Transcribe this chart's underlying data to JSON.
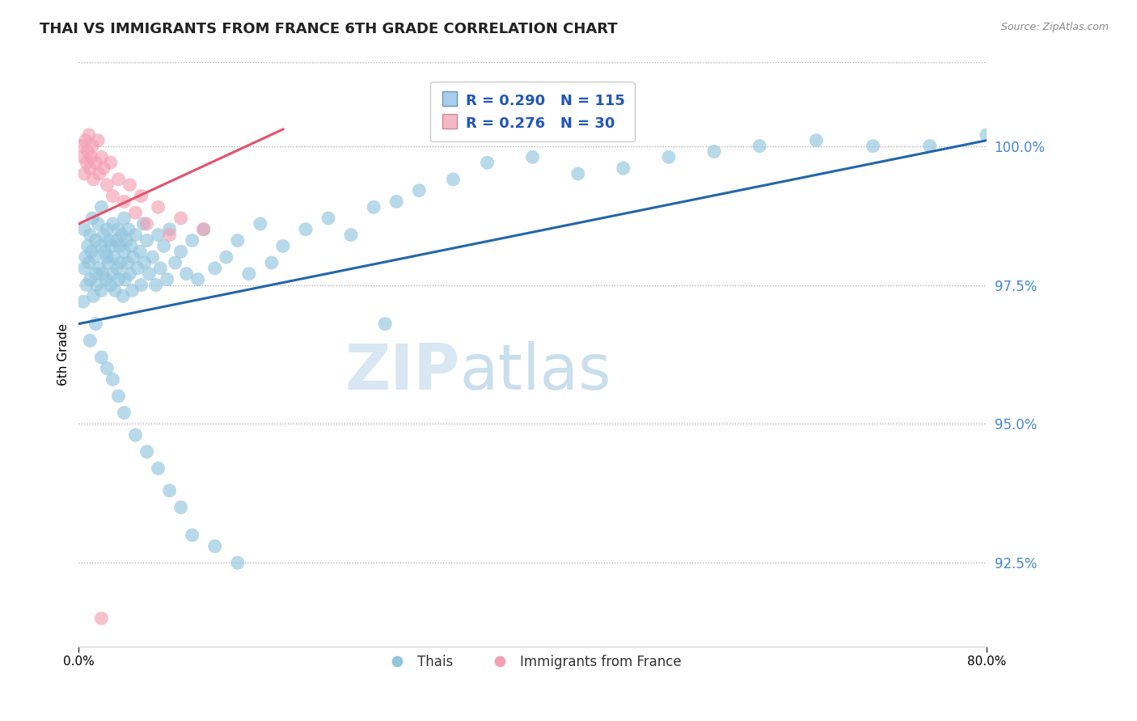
{
  "title": "THAI VS IMMIGRANTS FROM FRANCE 6TH GRADE CORRELATION CHART",
  "source_text": "Source: ZipAtlas.com",
  "xlabel": "",
  "ylabel": "6th Grade",
  "xlim": [
    0.0,
    80.0
  ],
  "ylim": [
    91.0,
    101.5
  ],
  "yticks": [
    92.5,
    95.0,
    97.5,
    100.0
  ],
  "ytick_labels": [
    "92.5%",
    "95.0%",
    "97.5%",
    "100.0%"
  ],
  "xticks": [
    0.0,
    80.0
  ],
  "xtick_labels": [
    "0.0%",
    "80.0%"
  ],
  "legend_r_blue": "R = 0.290",
  "legend_n_blue": "N = 115",
  "legend_r_pink": "R = 0.276",
  "legend_n_pink": "N = 30",
  "legend_label_blue": "Thais",
  "legend_label_pink": "Immigrants from France",
  "blue_color": "#92c5de",
  "pink_color": "#f4a0b5",
  "blue_line_color": "#2166ac",
  "pink_line_color": "#e8506a",
  "watermark_color": "#cce0f0",
  "watermark_text": "ZIPatlas",
  "blue_line_x0": 0.0,
  "blue_line_y0": 96.8,
  "blue_line_x1": 80.0,
  "blue_line_y1": 100.1,
  "pink_line_x0": 0.0,
  "pink_line_y0": 98.6,
  "pink_line_x1": 18.0,
  "pink_line_y1": 100.3,
  "blue_scatter_x": [
    0.4,
    0.5,
    0.5,
    0.6,
    0.7,
    0.8,
    0.9,
    1.0,
    1.0,
    1.1,
    1.2,
    1.3,
    1.4,
    1.5,
    1.5,
    1.6,
    1.7,
    1.8,
    1.9,
    2.0,
    2.0,
    2.1,
    2.2,
    2.3,
    2.4,
    2.5,
    2.5,
    2.6,
    2.7,
    2.8,
    2.9,
    3.0,
    3.0,
    3.1,
    3.2,
    3.3,
    3.4,
    3.5,
    3.5,
    3.6,
    3.7,
    3.8,
    3.9,
    4.0,
    4.0,
    4.1,
    4.2,
    4.3,
    4.4,
    4.5,
    4.6,
    4.7,
    4.8,
    5.0,
    5.2,
    5.4,
    5.5,
    5.7,
    5.8,
    6.0,
    6.2,
    6.5,
    6.8,
    7.0,
    7.2,
    7.5,
    7.8,
    8.0,
    8.5,
    9.0,
    9.5,
    10.0,
    10.5,
    11.0,
    12.0,
    13.0,
    14.0,
    15.0,
    16.0,
    17.0,
    18.0,
    20.0,
    22.0,
    24.0,
    26.0,
    28.0,
    30.0,
    33.0,
    36.0,
    40.0,
    44.0,
    48.0,
    52.0,
    56.0,
    60.0,
    65.0,
    70.0,
    75.0,
    80.0,
    1.0,
    1.5,
    2.0,
    2.5,
    3.0,
    3.5,
    4.0,
    5.0,
    6.0,
    7.0,
    8.0,
    9.0,
    10.0,
    12.0,
    14.0,
    27.0
  ],
  "blue_scatter_y": [
    97.2,
    97.8,
    98.5,
    98.0,
    97.5,
    98.2,
    97.9,
    98.4,
    97.6,
    98.1,
    98.7,
    97.3,
    98.0,
    97.7,
    98.3,
    97.5,
    98.6,
    97.8,
    98.2,
    97.4,
    98.9,
    97.7,
    98.4,
    98.1,
    97.6,
    98.0,
    98.5,
    97.9,
    98.3,
    97.5,
    98.2,
    97.7,
    98.6,
    98.0,
    97.4,
    98.3,
    97.8,
    98.5,
    97.6,
    98.2,
    97.9,
    98.4,
    97.3,
    98.1,
    98.7,
    97.6,
    98.3,
    97.9,
    98.5,
    97.7,
    98.2,
    97.4,
    98.0,
    98.4,
    97.8,
    98.1,
    97.5,
    98.6,
    97.9,
    98.3,
    97.7,
    98.0,
    97.5,
    98.4,
    97.8,
    98.2,
    97.6,
    98.5,
    97.9,
    98.1,
    97.7,
    98.3,
    97.6,
    98.5,
    97.8,
    98.0,
    98.3,
    97.7,
    98.6,
    97.9,
    98.2,
    98.5,
    98.7,
    98.4,
    98.9,
    99.0,
    99.2,
    99.4,
    99.7,
    99.8,
    99.5,
    99.6,
    99.8,
    99.9,
    100.0,
    100.1,
    100.0,
    100.0,
    100.2,
    96.5,
    96.8,
    96.2,
    96.0,
    95.8,
    95.5,
    95.2,
    94.8,
    94.5,
    94.2,
    93.8,
    93.5,
    93.0,
    92.8,
    92.5,
    96.8
  ],
  "pink_scatter_x": [
    0.3,
    0.4,
    0.5,
    0.6,
    0.7,
    0.8,
    0.9,
    1.0,
    1.1,
    1.2,
    1.3,
    1.5,
    1.7,
    1.8,
    2.0,
    2.2,
    2.5,
    2.8,
    3.0,
    3.5,
    4.0,
    4.5,
    5.0,
    5.5,
    6.0,
    7.0,
    8.0,
    9.0,
    11.0,
    2.0
  ],
  "pink_scatter_y": [
    100.0,
    99.8,
    99.5,
    100.1,
    99.7,
    99.9,
    100.2,
    99.6,
    99.8,
    100.0,
    99.4,
    99.7,
    100.1,
    99.5,
    99.8,
    99.6,
    99.3,
    99.7,
    99.1,
    99.4,
    99.0,
    99.3,
    98.8,
    99.1,
    98.6,
    98.9,
    98.4,
    98.7,
    98.5,
    91.5
  ]
}
